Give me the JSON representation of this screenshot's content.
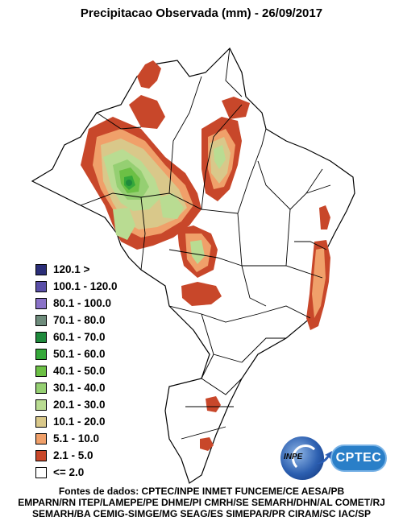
{
  "title": "Precipitacao Observada (mm) - 26/09/2017",
  "legend": [
    {
      "label": "120.1 >",
      "color": "#2b2e78"
    },
    {
      "label": "100.1 - 120.0",
      "color": "#5a4fa8"
    },
    {
      "label": "80.1 - 100.0",
      "color": "#8a72c8"
    },
    {
      "label": "70.1 - 80.0",
      "color": "#6e8c7c"
    },
    {
      "label": "60.1 - 70.0",
      "color": "#1f8a3c"
    },
    {
      "label": "50.1 - 60.0",
      "color": "#35a83a"
    },
    {
      "label": "40.1 - 50.0",
      "color": "#6cc045"
    },
    {
      "label": "30.1 - 40.0",
      "color": "#95cf72"
    },
    {
      "label": "20.1 - 30.0",
      "color": "#b9dc92"
    },
    {
      "label": "10.1 - 20.0",
      "color": "#d9c88a"
    },
    {
      "label": "5.1 - 10.0",
      "color": "#f0a06a"
    },
    {
      "label": "2.1 - 5.0",
      "color": "#c8472a"
    },
    {
      "label": "<= 2.0",
      "color": "#ffffff"
    }
  ],
  "logos": {
    "inpe": "INPE",
    "cptec": "CPTEC"
  },
  "sources": [
    "Fontes de dados: CPTEC/INPE INMET FUNCEME/CE AESA/PB",
    "EMPARN/RN ITEP/LAMEPE/PE DHME/PI CMRH/SE SEMARH/DHN/AL COMET/RJ",
    "SEMARH/BA CEMIG-SIMGE/MG SEAG/ES SIMEPAR/PR CIRAM/SC IAC/SP"
  ]
}
